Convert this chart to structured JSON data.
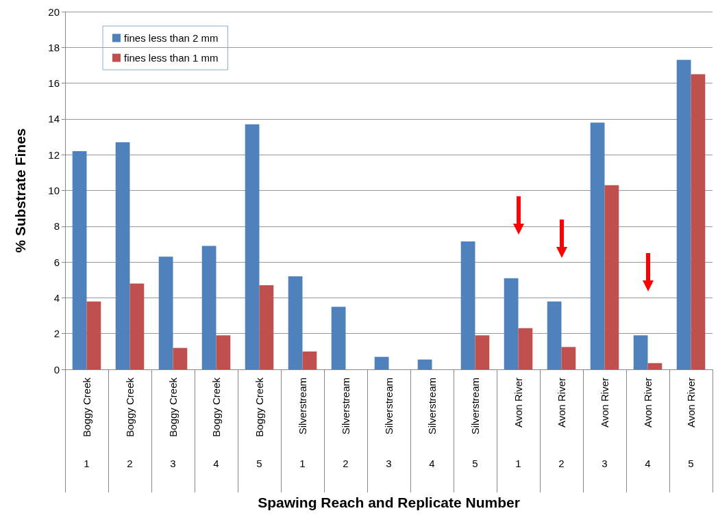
{
  "chart_data": {
    "type": "bar",
    "xlabel": "Spawing Reach and Replicate Number",
    "ylabel": "% Substrate Fines",
    "categories": [
      "Boggy Creek",
      "Boggy Creek",
      "Boggy Creek",
      "Boggy Creek",
      "Boggy Creek",
      "Silverstream",
      "Silverstream",
      "Silverstream",
      "Silverstream",
      "Silverstream",
      "Avon River",
      "Avon River",
      "Avon River",
      "Avon River",
      "Avon River"
    ],
    "annotations": [
      "1",
      "2",
      "3",
      "4",
      "5",
      "1",
      "2",
      "3",
      "4",
      "5",
      "1",
      "2",
      "3",
      "4",
      "5"
    ],
    "series": [
      {
        "name": "fines less than 2 mm",
        "color": "#4f81bd",
        "values": [
          12.2,
          12.7,
          6.3,
          6.9,
          13.7,
          5.2,
          3.5,
          0.7,
          0.55,
          7.15,
          5.1,
          3.8,
          13.8,
          1.9,
          17.3
        ]
      },
      {
        "name": "fines less than 1 mm",
        "color": "#c0504d",
        "values": [
          3.8,
          4.8,
          1.2,
          1.9,
          4.7,
          1.0,
          0,
          0,
          0,
          1.9,
          2.3,
          1.25,
          10.3,
          0.35,
          16.5
        ]
      }
    ],
    "ylim": [
      0,
      20
    ],
    "yticks": [
      0,
      2,
      4,
      6,
      8,
      10,
      12,
      14,
      16,
      18,
      20
    ],
    "grid": "y",
    "legend": "top left"
  }
}
